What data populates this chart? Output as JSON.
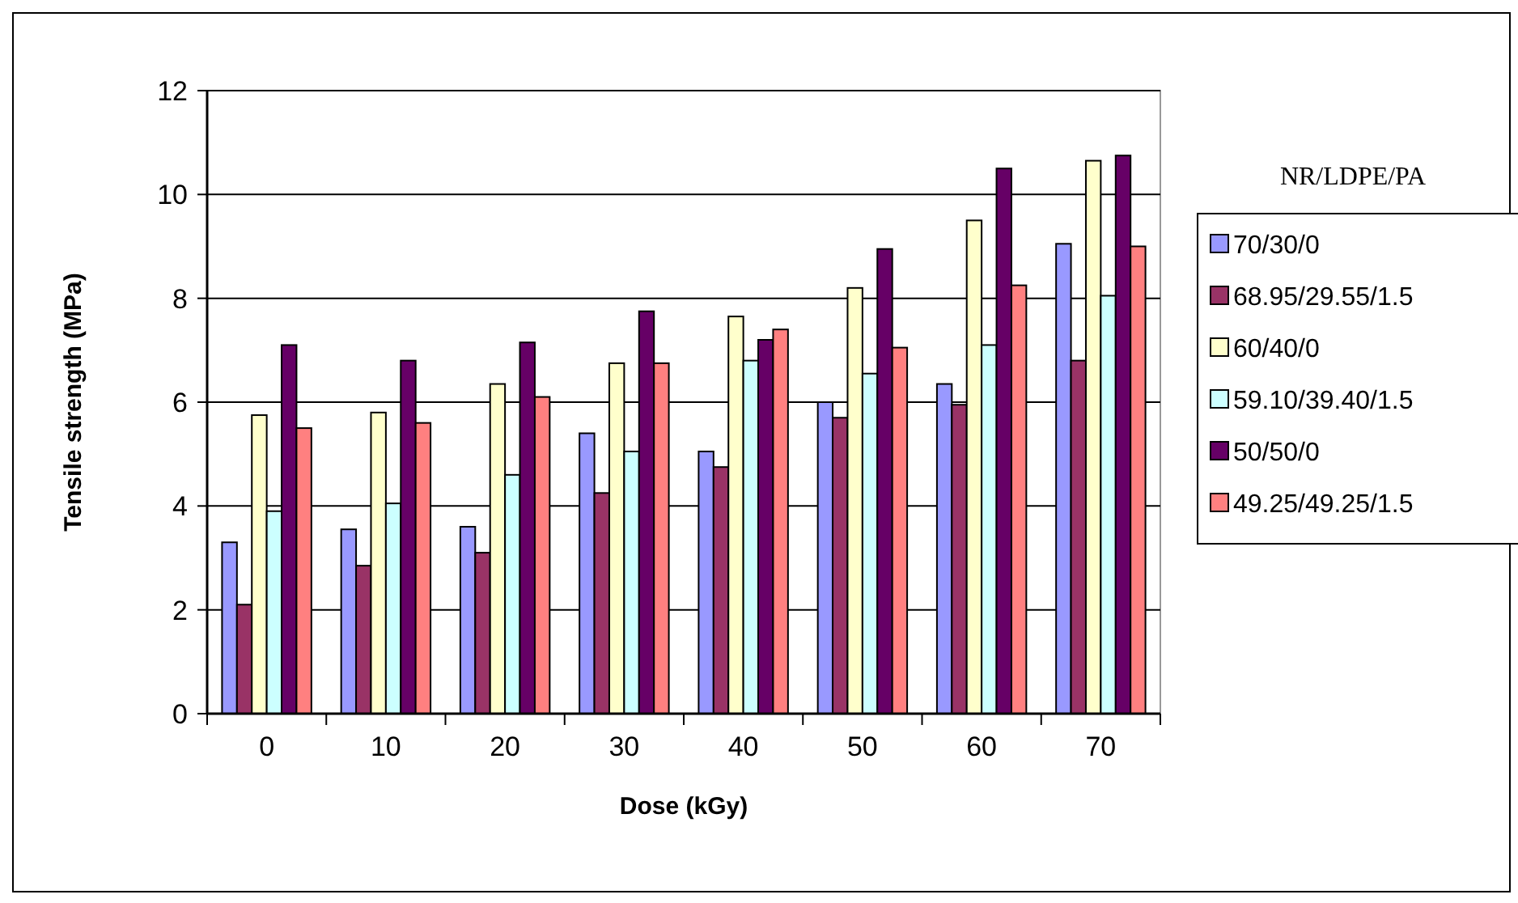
{
  "chart_data": {
    "type": "bar",
    "xlabel": "Dose (kGy)",
    "ylabel": "Tensile strength (MPa)",
    "legend_title": "NR/LDPE/PA",
    "categories": [
      "0",
      "10",
      "20",
      "30",
      "40",
      "50",
      "60",
      "70"
    ],
    "series": [
      {
        "name": "70/30/0",
        "color": "#9999ff",
        "values": [
          3.3,
          3.55,
          3.6,
          5.4,
          5.05,
          6.0,
          6.35,
          9.05
        ]
      },
      {
        "name": "68.95/29.55/1.5",
        "color": "#993366",
        "values": [
          2.1,
          2.85,
          3.1,
          4.25,
          4.75,
          5.7,
          5.95,
          6.8
        ]
      },
      {
        "name": "60/40/0",
        "color": "#ffffcc",
        "values": [
          5.75,
          5.8,
          6.35,
          6.75,
          7.65,
          8.2,
          9.5,
          10.65
        ]
      },
      {
        "name": "59.10/39.40/1.5",
        "color": "#ccffff",
        "values": [
          3.9,
          4.05,
          4.6,
          5.05,
          6.8,
          6.55,
          7.1,
          8.05
        ]
      },
      {
        "name": "50/50/0",
        "color": "#660066",
        "values": [
          7.1,
          6.8,
          7.15,
          7.75,
          7.2,
          8.95,
          10.5,
          10.75
        ]
      },
      {
        "name": "49.25/49.25/1.5",
        "color": "#ff8080",
        "values": [
          5.5,
          5.6,
          6.1,
          6.75,
          7.4,
          7.05,
          8.25,
          9.0
        ]
      }
    ],
    "ylim": [
      0,
      12
    ],
    "yticks": [
      0,
      2,
      4,
      6,
      8,
      10,
      12
    ],
    "grid": "y",
    "legend": "right"
  }
}
